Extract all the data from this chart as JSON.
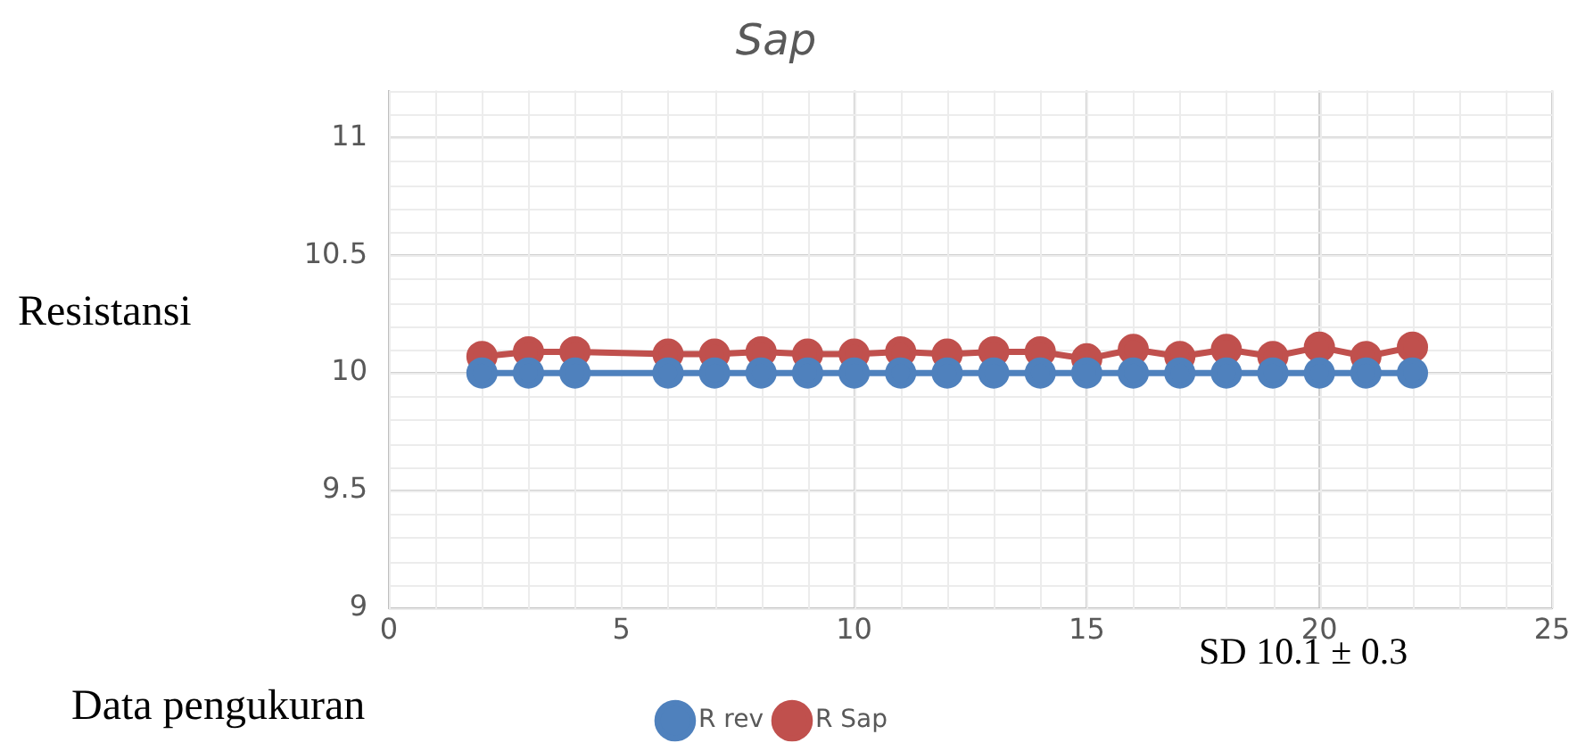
{
  "chart_data": {
    "type": "line",
    "title": "Sap",
    "xlabel": "Data pengukuran",
    "ylabel": "Resistansi",
    "annotations": [
      "SD 10.1 ± 0.3"
    ],
    "x": [
      2,
      3,
      4,
      6,
      7,
      8,
      9,
      10,
      11,
      12,
      13,
      14,
      15,
      16,
      17,
      18,
      19,
      20,
      21,
      22
    ],
    "series": [
      {
        "name": "R rev",
        "color": "#4f81bd",
        "values": [
          10,
          10,
          10,
          10,
          10,
          10,
          10,
          10,
          10,
          10,
          10,
          10,
          10,
          10,
          10,
          10,
          10,
          10,
          10,
          10
        ]
      },
      {
        "name": "R Sap",
        "color": "#c0504d",
        "values": [
          10.07,
          10.09,
          10.09,
          10.08,
          10.08,
          10.09,
          10.08,
          10.08,
          10.09,
          10.08,
          10.09,
          10.09,
          10.06,
          10.1,
          10.07,
          10.1,
          10.07,
          10.11,
          10.07,
          10.11
        ]
      }
    ],
    "xlim": [
      0,
      25
    ],
    "xticks": [
      0,
      5,
      10,
      15,
      20,
      25
    ],
    "ylim": [
      9,
      11.2
    ],
    "yticks": [
      9,
      9.5,
      10,
      10.5,
      11
    ],
    "grid": true,
    "legend": "bottom",
    "marker": "circle",
    "line_style": "solid"
  }
}
